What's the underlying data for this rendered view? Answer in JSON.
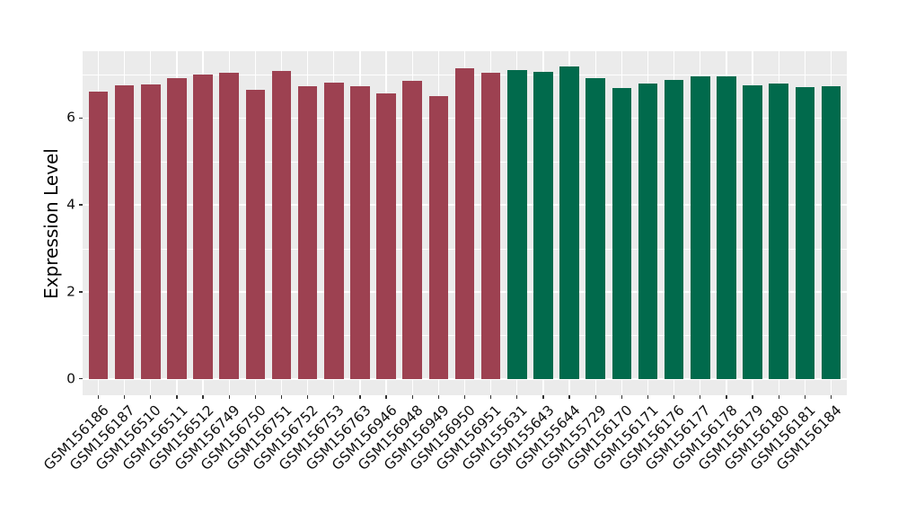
{
  "chart_data": {
    "type": "bar",
    "title": "",
    "xlabel": "",
    "ylabel": "Expression Level",
    "ylim": [
      0,
      7.54
    ],
    "yticks_major": [
      0,
      2,
      4,
      6
    ],
    "yticks_minor": [
      1,
      3,
      5,
      7
    ],
    "grid": "on",
    "legend": "none",
    "categories": [
      "GSM156186",
      "GSM156187",
      "GSM156510",
      "GSM156511",
      "GSM156512",
      "GSM156749",
      "GSM156750",
      "GSM156751",
      "GSM156752",
      "GSM156753",
      "GSM156763",
      "GSM156946",
      "GSM156948",
      "GSM156949",
      "GSM156950",
      "GSM156951",
      "GSM155631",
      "GSM155643",
      "GSM155644",
      "GSM155729",
      "GSM156170",
      "GSM156171",
      "GSM156176",
      "GSM156177",
      "GSM156178",
      "GSM156179",
      "GSM156180",
      "GSM156181",
      "GSM156184"
    ],
    "values": [
      6.6,
      6.74,
      6.78,
      6.92,
      7.0,
      7.04,
      6.64,
      7.09,
      6.73,
      6.81,
      6.73,
      6.57,
      6.85,
      6.5,
      7.15,
      7.04,
      7.1,
      7.07,
      7.18,
      6.91,
      6.68,
      6.8,
      6.87,
      6.96,
      6.95,
      6.74,
      6.79,
      6.71,
      6.72
    ],
    "groups": [
      "maroon",
      "maroon",
      "maroon",
      "maroon",
      "maroon",
      "maroon",
      "maroon",
      "maroon",
      "maroon",
      "maroon",
      "maroon",
      "maroon",
      "maroon",
      "maroon",
      "maroon",
      "maroon",
      "green",
      "green",
      "green",
      "green",
      "green",
      "green",
      "green",
      "green",
      "green",
      "green",
      "green",
      "green",
      "green"
    ],
    "group_colors": {
      "maroon": "#9D4151",
      "green": "#016A4C"
    },
    "style": {
      "panel_background": "#EBEBEB",
      "grid_color": "#FFFFFF",
      "tick_color": "#333333",
      "axis_text_color": "#111111",
      "axis_title_color": "#000000"
    }
  }
}
